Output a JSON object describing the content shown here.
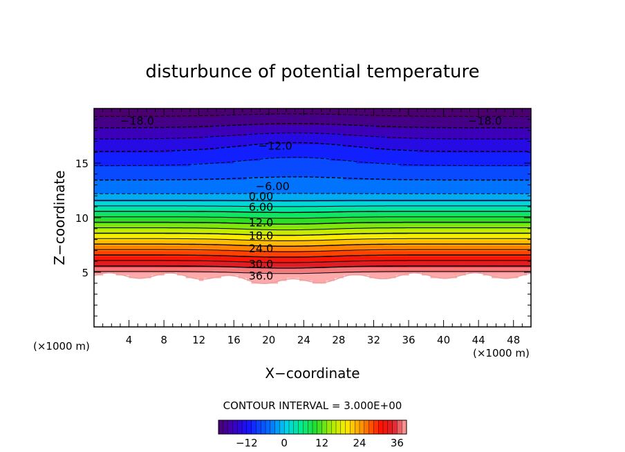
{
  "chart_data": {
    "type": "heatmap",
    "title": "disturbunce of potential temperature",
    "xlabel": "X−coordinate",
    "ylabel": "Z−coordinate",
    "x_unit_left": "(×1000 m)",
    "x_unit_right": "(×1000 m)",
    "xlim": [
      0,
      50
    ],
    "ylim": [
      0,
      20
    ],
    "x_ticks": [
      4,
      8,
      12,
      16,
      20,
      24,
      28,
      32,
      36,
      40,
      44,
      48
    ],
    "y_ticks": [
      5,
      10,
      15
    ],
    "contour_interval_text": "CONTOUR INTERVAL = 3.000E+00",
    "contour_labels": [
      {
        "text": "−18.0",
        "x": 3.0,
        "z": 18.9
      },
      {
        "text": "−18.0",
        "x": 42.8,
        "z": 18.9
      },
      {
        "text": "−12.0",
        "x": 18.8,
        "z": 16.6
      },
      {
        "text": "−6.00",
        "x": 18.5,
        "z": 12.9
      },
      {
        "text": "0.00",
        "x": 17.7,
        "z": 12.0
      },
      {
        "text": "6.00",
        "x": 17.7,
        "z": 11.0
      },
      {
        "text": "12.0",
        "x": 17.7,
        "z": 9.6
      },
      {
        "text": "18.0",
        "x": 17.7,
        "z": 8.4
      },
      {
        "text": "24.0",
        "x": 17.7,
        "z": 7.2
      },
      {
        "text": "30.0",
        "x": 17.7,
        "z": 5.8
      },
      {
        "text": "36.0",
        "x": 17.7,
        "z": 4.7
      }
    ],
    "colorbar": {
      "range": [
        -21,
        39
      ],
      "tick_values": [
        -12,
        0,
        12,
        24,
        36
      ],
      "tick_labels": [
        "−12",
        "0",
        "12",
        "24",
        "36"
      ]
    }
  }
}
